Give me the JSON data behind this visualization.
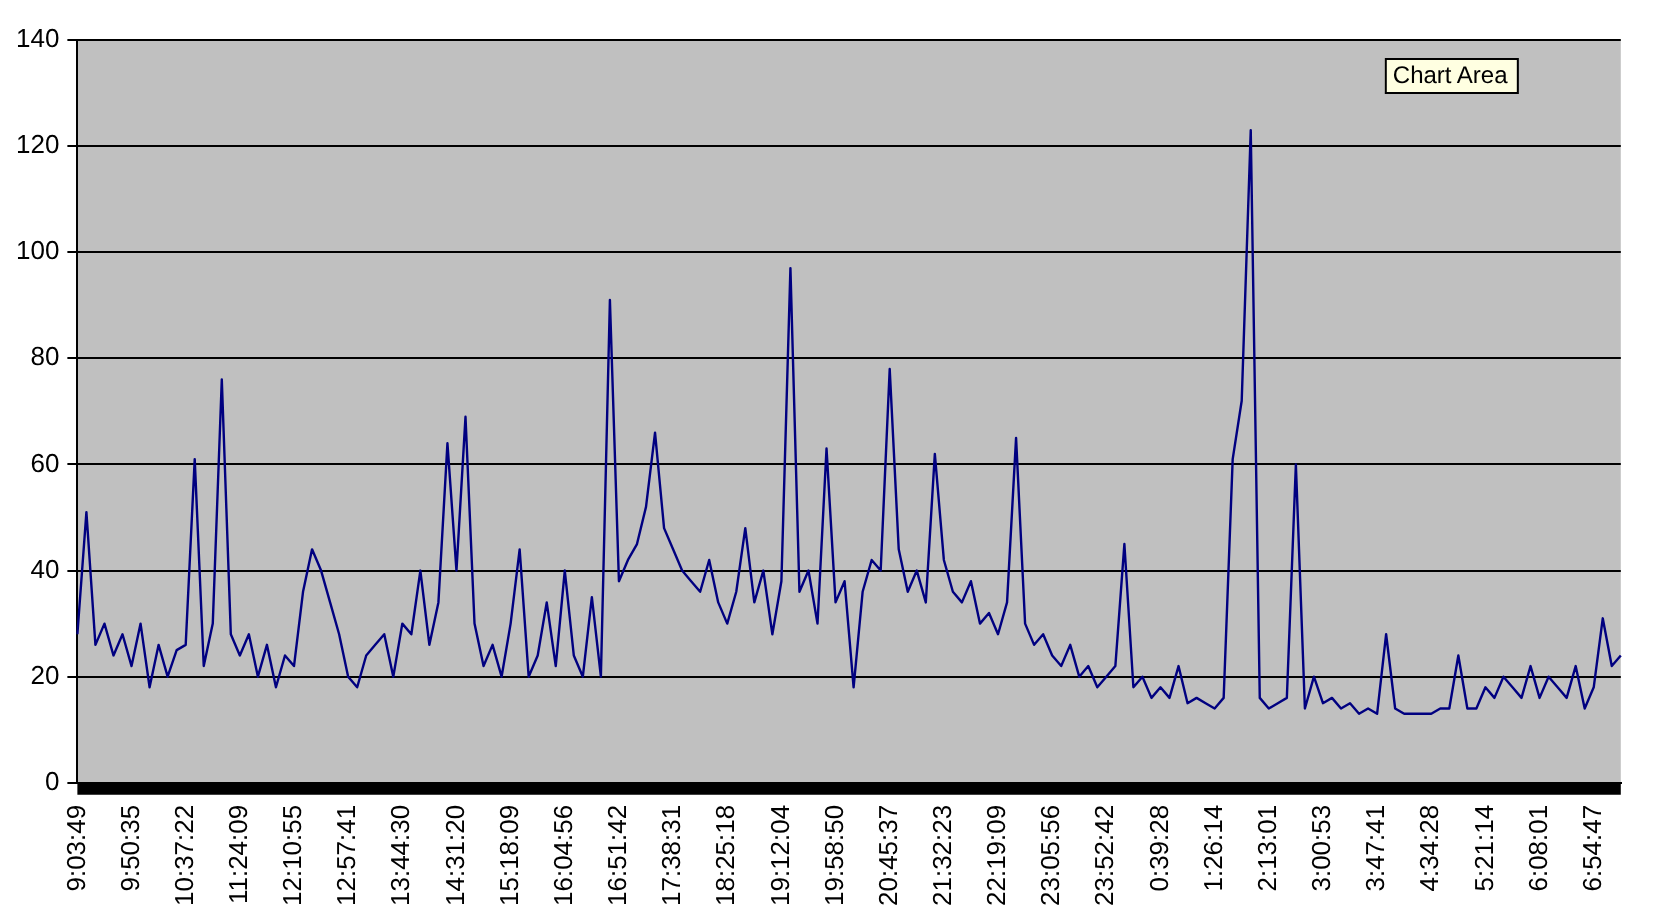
{
  "chart_data": {
    "type": "line",
    "categories": [
      "9:03:49",
      null,
      null,
      null,
      null,
      null,
      "9:50:35",
      null,
      null,
      null,
      null,
      null,
      "10:37:22",
      null,
      null,
      null,
      null,
      null,
      "11:24:09",
      null,
      null,
      null,
      null,
      null,
      "12:10:55",
      null,
      null,
      null,
      null,
      null,
      "12:57:41",
      null,
      null,
      null,
      null,
      null,
      "13:44:30",
      null,
      null,
      null,
      null,
      null,
      "14:31:20",
      null,
      null,
      null,
      null,
      null,
      "15:18:09",
      null,
      null,
      null,
      null,
      null,
      "16:04:56",
      null,
      null,
      null,
      null,
      null,
      "16:51:42",
      null,
      null,
      null,
      null,
      null,
      "17:38:31",
      null,
      null,
      null,
      null,
      null,
      "18:25:18",
      null,
      null,
      null,
      null,
      null,
      "19:12:04",
      null,
      null,
      null,
      null,
      null,
      "19:58:50",
      null,
      null,
      null,
      null,
      null,
      "20:45:37",
      null,
      null,
      null,
      null,
      null,
      "21:32:23",
      null,
      null,
      null,
      null,
      null,
      "22:19:09",
      null,
      null,
      null,
      null,
      null,
      "23:05:56",
      null,
      null,
      null,
      null,
      null,
      "23:52:42",
      null,
      null,
      null,
      null,
      null,
      "0:39:28",
      null,
      null,
      null,
      null,
      null,
      "1:26:14",
      null,
      null,
      null,
      null,
      null,
      "2:13:01",
      null,
      null,
      null,
      null,
      null,
      "3:00:53",
      null,
      null,
      null,
      null,
      null,
      "3:47:41",
      null,
      null,
      null,
      null,
      null,
      "4:34:28",
      null,
      null,
      null,
      null,
      null,
      "5:21:14",
      null,
      null,
      null,
      null,
      null,
      "6:08:01",
      null,
      null,
      null,
      null,
      null,
      "6:54:47",
      null,
      null,
      null
    ],
    "series": [
      {
        "color": "#000080",
        "values": [
          28,
          51,
          26,
          30,
          24,
          28,
          22,
          30,
          18,
          26,
          20,
          25,
          26,
          61,
          22,
          30,
          76,
          28,
          24,
          28,
          20,
          26,
          18,
          24,
          22,
          36,
          44,
          40,
          34,
          28,
          20,
          18,
          24,
          26,
          28,
          20,
          30,
          28,
          40,
          26,
          34,
          64,
          40,
          69,
          30,
          22,
          26,
          20,
          30,
          44,
          20,
          24,
          34,
          22,
          40,
          24,
          20,
          35,
          20,
          91,
          38,
          42,
          45,
          52,
          66,
          48,
          44,
          40,
          38,
          36,
          42,
          34,
          30,
          36,
          48,
          34,
          40,
          28,
          38,
          97,
          36,
          40,
          30,
          63,
          34,
          38,
          18,
          36,
          42,
          40,
          78,
          44,
          36,
          40,
          34,
          62,
          42,
          36,
          34,
          38,
          30,
          32,
          28,
          34,
          65,
          30,
          26,
          28,
          24,
          22,
          26,
          20,
          22,
          18,
          20,
          22,
          45,
          18,
          20,
          16,
          18,
          16,
          22,
          15,
          16,
          15,
          14,
          16,
          61,
          72,
          123,
          16,
          14,
          15,
          16,
          60,
          14,
          20,
          15,
          16,
          14,
          15,
          13,
          14,
          13,
          28,
          14,
          13,
          13,
          13,
          13,
          14,
          14,
          24,
          14,
          14,
          18,
          16,
          20,
          18,
          16,
          22,
          16,
          20,
          18,
          16,
          22,
          14,
          18,
          31,
          22,
          24
        ]
      }
    ],
    "ylim": [
      0,
      140
    ],
    "yticks": [
      0,
      20,
      40,
      60,
      80,
      100,
      120,
      140
    ],
    "grid": "y",
    "annotations": [
      "Chart Area"
    ]
  }
}
